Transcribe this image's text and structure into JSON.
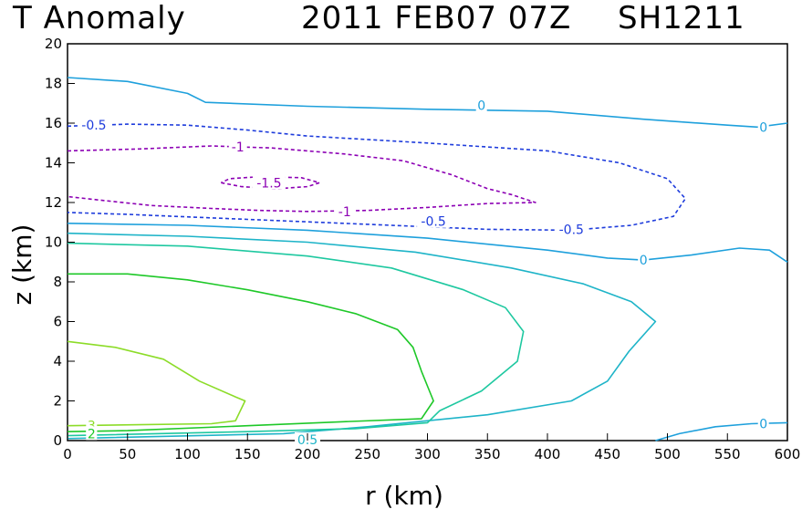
{
  "chart_data": {
    "type": "contour",
    "title_left": "T Anomaly",
    "title_time": "2011 FEB07 07Z",
    "title_storm": "SH1211",
    "xlabel": "r (km)",
    "ylabel": "z (km)",
    "xlim": [
      0,
      600
    ],
    "ylim": [
      0,
      20
    ],
    "xticks": [
      0,
      50,
      100,
      150,
      200,
      250,
      300,
      350,
      400,
      450,
      500,
      550,
      600
    ],
    "yticks": [
      0,
      2,
      4,
      6,
      8,
      10,
      12,
      14,
      16,
      18,
      20
    ],
    "contours": [
      {
        "id": "c-neg1p5",
        "level": -1.5,
        "color": "#8c00b4",
        "dashed": true,
        "closed": true,
        "points": [
          [
            128,
            13.0
          ],
          [
            145,
            12.8
          ],
          [
            175,
            12.7
          ],
          [
            200,
            12.8
          ],
          [
            210,
            13.0
          ],
          [
            195,
            13.25
          ],
          [
            160,
            13.3
          ],
          [
            135,
            13.2
          ],
          [
            128,
            13.0
          ]
        ]
      },
      {
        "id": "c-neg1",
        "level": -1,
        "color": "#8c00b4",
        "dashed": true,
        "closed": false,
        "points": [
          [
            0,
            14.6
          ],
          [
            60,
            14.7
          ],
          [
            120,
            14.85
          ],
          [
            170,
            14.75
          ],
          [
            230,
            14.45
          ],
          [
            280,
            14.1
          ],
          [
            320,
            13.4
          ],
          [
            350,
            12.7
          ],
          [
            370,
            12.4
          ],
          [
            390,
            12.0
          ],
          [
            350,
            11.95
          ],
          [
            300,
            11.75
          ],
          [
            250,
            11.6
          ],
          [
            200,
            11.55
          ],
          [
            160,
            11.6
          ],
          [
            120,
            11.7
          ],
          [
            70,
            11.85
          ],
          [
            30,
            12.1
          ],
          [
            0,
            12.3
          ]
        ]
      },
      {
        "id": "c-neg0p5",
        "level": -0.5,
        "color": "#1e3cdc",
        "dashed": true,
        "closed": false,
        "points": [
          [
            0,
            15.85
          ],
          [
            50,
            15.95
          ],
          [
            100,
            15.9
          ],
          [
            150,
            15.65
          ],
          [
            200,
            15.35
          ],
          [
            300,
            15.0
          ],
          [
            400,
            14.6
          ],
          [
            460,
            14.0
          ],
          [
            500,
            13.2
          ],
          [
            515,
            12.2
          ],
          [
            505,
            11.3
          ],
          [
            470,
            10.85
          ],
          [
            420,
            10.6
          ],
          [
            350,
            10.65
          ],
          [
            250,
            10.9
          ],
          [
            150,
            11.15
          ],
          [
            50,
            11.4
          ],
          [
            0,
            11.5
          ]
        ]
      },
      {
        "id": "c-zero-top",
        "level": 0,
        "color": "#1ea0dc",
        "dashed": false,
        "closed": false,
        "points": [
          [
            0,
            18.3
          ],
          [
            50,
            18.1
          ],
          [
            100,
            17.5
          ],
          [
            115,
            17.05
          ],
          [
            200,
            16.85
          ],
          [
            300,
            16.7
          ],
          [
            400,
            16.6
          ],
          [
            480,
            16.2
          ],
          [
            550,
            15.9
          ],
          [
            575,
            15.8
          ],
          [
            600,
            16.0
          ]
        ]
      },
      {
        "id": "c-zero-mid",
        "level": 0,
        "color": "#1ea0dc",
        "dashed": false,
        "closed": false,
        "points": [
          [
            0,
            10.95
          ],
          [
            100,
            10.85
          ],
          [
            200,
            10.6
          ],
          [
            300,
            10.2
          ],
          [
            400,
            9.6
          ],
          [
            450,
            9.2
          ],
          [
            480,
            9.1
          ],
          [
            520,
            9.35
          ],
          [
            560,
            9.7
          ],
          [
            585,
            9.6
          ],
          [
            600,
            9.0
          ]
        ]
      },
      {
        "id": "c-zero-low",
        "level": 0,
        "color": "#1ea0dc",
        "dashed": false,
        "closed": false,
        "points": [
          [
            490,
            0.0
          ],
          [
            510,
            0.35
          ],
          [
            540,
            0.7
          ],
          [
            570,
            0.85
          ],
          [
            600,
            0.9
          ]
        ]
      },
      {
        "id": "c-0p5",
        "level": 0.5,
        "color": "#1eb4c8",
        "dashed": false,
        "closed": false,
        "points": [
          [
            0,
            10.45
          ],
          [
            100,
            10.3
          ],
          [
            200,
            10.0
          ],
          [
            290,
            9.5
          ],
          [
            370,
            8.7
          ],
          [
            430,
            7.9
          ],
          [
            470,
            7.0
          ],
          [
            490,
            6.0
          ],
          [
            468,
            4.5
          ],
          [
            450,
            3.0
          ],
          [
            420,
            2.0
          ],
          [
            350,
            1.3
          ],
          [
            250,
            0.7
          ],
          [
            180,
            0.35
          ],
          [
            0,
            0.1
          ]
        ]
      },
      {
        "id": "c-1",
        "level": 1,
        "color": "#1ec8a0",
        "dashed": false,
        "closed": false,
        "points": [
          [
            0,
            9.95
          ],
          [
            100,
            9.8
          ],
          [
            200,
            9.3
          ],
          [
            270,
            8.7
          ],
          [
            330,
            7.6
          ],
          [
            365,
            6.7
          ],
          [
            380,
            5.5
          ],
          [
            375,
            4.0
          ],
          [
            345,
            2.5
          ],
          [
            310,
            1.5
          ],
          [
            300,
            0.9
          ],
          [
            240,
            0.6
          ],
          [
            150,
            0.45
          ],
          [
            0,
            0.25
          ]
        ]
      },
      {
        "id": "c-2",
        "level": 2,
        "color": "#1ec828",
        "dashed": false,
        "closed": false,
        "points": [
          [
            0,
            8.4
          ],
          [
            50,
            8.4
          ],
          [
            100,
            8.1
          ],
          [
            150,
            7.6
          ],
          [
            200,
            7.0
          ],
          [
            240,
            6.4
          ],
          [
            275,
            5.6
          ],
          [
            288,
            4.7
          ],
          [
            295,
            3.5
          ],
          [
            305,
            2.0
          ],
          [
            295,
            1.1
          ],
          [
            230,
            0.95
          ],
          [
            150,
            0.75
          ],
          [
            50,
            0.5
          ],
          [
            0,
            0.45
          ]
        ]
      },
      {
        "id": "c-3",
        "level": 3,
        "color": "#8cdc28",
        "dashed": false,
        "closed": false,
        "points": [
          [
            0,
            5.0
          ],
          [
            40,
            4.7
          ],
          [
            80,
            4.1
          ],
          [
            110,
            3.0
          ],
          [
            140,
            2.2
          ],
          [
            148,
            2.0
          ],
          [
            140,
            1.0
          ],
          [
            120,
            0.85
          ],
          [
            60,
            0.8
          ],
          [
            0,
            0.75
          ]
        ]
      }
    ],
    "labels": [
      {
        "id": "lbl-0-top",
        "text": "0",
        "x": 345,
        "y": 16.9,
        "color": "#1ea0dc"
      },
      {
        "id": "lbl-0-right",
        "text": "0",
        "x": 580,
        "y": 15.8,
        "color": "#1ea0dc"
      },
      {
        "id": "lbl-neg0p5-left",
        "text": "-0.5",
        "x": 22,
        "y": 15.9,
        "color": "#1e3cdc"
      },
      {
        "id": "lbl-neg1-left",
        "text": "-1",
        "x": 142,
        "y": 14.8,
        "color": "#8c00b4"
      },
      {
        "id": "lbl-neg1p5",
        "text": "-1.5",
        "x": 168,
        "y": 13.0,
        "color": "#8c00b4"
      },
      {
        "id": "lbl-neg1-low",
        "text": "-1",
        "x": 231,
        "y": 11.55,
        "color": "#8c00b4"
      },
      {
        "id": "lbl-neg0p5-mid",
        "text": "-0.5",
        "x": 305,
        "y": 11.05,
        "color": "#1e3cdc"
      },
      {
        "id": "lbl-neg0p5-right",
        "text": "-0.5",
        "x": 420,
        "y": 10.65,
        "color": "#1e3cdc"
      },
      {
        "id": "lbl-0-mid",
        "text": "0",
        "x": 480,
        "y": 9.1,
        "color": "#1ea0dc"
      },
      {
        "id": "lbl-3",
        "text": "3",
        "x": 20,
        "y": 0.75,
        "color": "#8cdc28"
      },
      {
        "id": "lbl-2",
        "text": "2",
        "x": 20,
        "y": 0.35,
        "color": "#1ec828"
      },
      {
        "id": "lbl-0p5-bottom",
        "text": "0.5",
        "x": 200,
        "y": 0.05,
        "color": "#1eb4c8"
      },
      {
        "id": "lbl-0-bottom",
        "text": "0",
        "x": 580,
        "y": 0.85,
        "color": "#1ea0dc"
      }
    ]
  }
}
